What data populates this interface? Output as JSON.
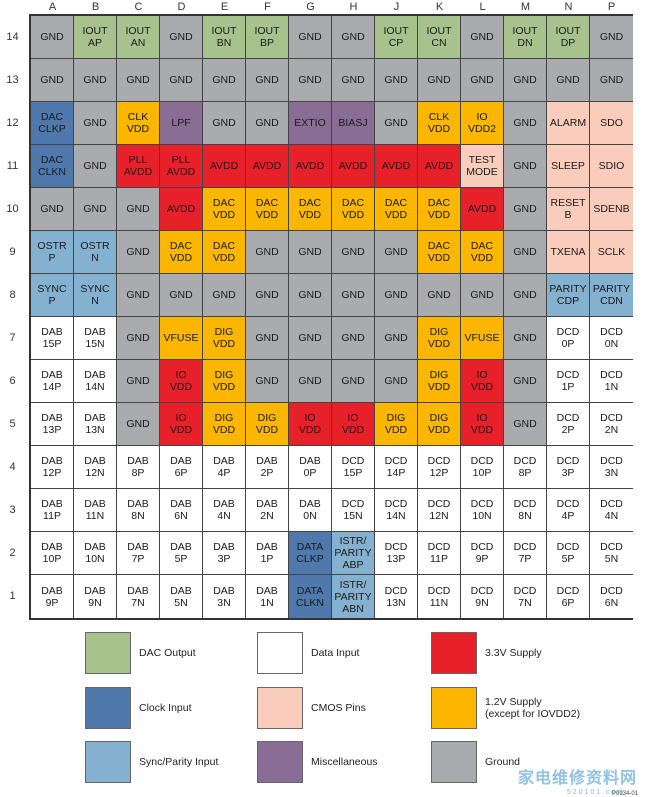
{
  "columns": [
    "A",
    "B",
    "C",
    "D",
    "E",
    "F",
    "G",
    "H",
    "J",
    "K",
    "L",
    "M",
    "N",
    "P"
  ],
  "rows": [
    "14",
    "13",
    "12",
    "11",
    "10",
    "9",
    "8",
    "7",
    "6",
    "5",
    "4",
    "3",
    "2",
    "1"
  ],
  "colors": {
    "dac": "#a8c28d",
    "clk": "#4f79ad",
    "sync": "#84b1cf",
    "data": "#ffffff",
    "cmos": "#f9ccbb",
    "misc": "#8a6d94",
    "v33": "#e8202a",
    "v12": "#fbb700",
    "gnd": "#a9abae"
  },
  "grid": [
    [
      [
        "GND",
        "gnd"
      ],
      [
        "IOUT\nAP",
        "dac"
      ],
      [
        "IOUT\nAN",
        "dac"
      ],
      [
        "GND",
        "gnd"
      ],
      [
        "IOUT\nBN",
        "dac"
      ],
      [
        "IOUT\nBP",
        "dac"
      ],
      [
        "GND",
        "gnd"
      ],
      [
        "GND",
        "gnd"
      ],
      [
        "IOUT\nCP",
        "dac"
      ],
      [
        "IOUT\nCN",
        "dac"
      ],
      [
        "GND",
        "gnd"
      ],
      [
        "IOUT\nDN",
        "dac"
      ],
      [
        "IOUT\nDP",
        "dac"
      ],
      [
        "GND",
        "gnd"
      ]
    ],
    [
      [
        "GND",
        "gnd"
      ],
      [
        "GND",
        "gnd"
      ],
      [
        "GND",
        "gnd"
      ],
      [
        "GND",
        "gnd"
      ],
      [
        "GND",
        "gnd"
      ],
      [
        "GND",
        "gnd"
      ],
      [
        "GND",
        "gnd"
      ],
      [
        "GND",
        "gnd"
      ],
      [
        "GND",
        "gnd"
      ],
      [
        "GND",
        "gnd"
      ],
      [
        "GND",
        "gnd"
      ],
      [
        "GND",
        "gnd"
      ],
      [
        "GND",
        "gnd"
      ],
      [
        "GND",
        "gnd"
      ]
    ],
    [
      [
        "DAC\nCLKP",
        "clk"
      ],
      [
        "GND",
        "gnd"
      ],
      [
        "CLK\nVDD",
        "v12"
      ],
      [
        "LPF",
        "misc"
      ],
      [
        "GND",
        "gnd"
      ],
      [
        "GND",
        "gnd"
      ],
      [
        "EXTIO",
        "misc"
      ],
      [
        "BIASJ",
        "misc"
      ],
      [
        "GND",
        "gnd"
      ],
      [
        "CLK\nVDD",
        "v12"
      ],
      [
        "IO\nVDD2",
        "v12"
      ],
      [
        "GND",
        "gnd"
      ],
      [
        "ALARM",
        "cmos"
      ],
      [
        "SDO",
        "cmos"
      ]
    ],
    [
      [
        "DAC\nCLKN",
        "clk"
      ],
      [
        "GND",
        "gnd"
      ],
      [
        "PLL\nAVDD",
        "v33"
      ],
      [
        "PLL\nAVDD",
        "v33"
      ],
      [
        "AVDD",
        "v33"
      ],
      [
        "AVDD",
        "v33"
      ],
      [
        "AVDD",
        "v33"
      ],
      [
        "AVDD",
        "v33"
      ],
      [
        "AVDD",
        "v33"
      ],
      [
        "AVDD",
        "v33"
      ],
      [
        "TEST\nMODE",
        "cmos"
      ],
      [
        "GND",
        "gnd"
      ],
      [
        "SLEEP",
        "cmos"
      ],
      [
        "SDIO",
        "cmos"
      ]
    ],
    [
      [
        "GND",
        "gnd"
      ],
      [
        "GND",
        "gnd"
      ],
      [
        "GND",
        "gnd"
      ],
      [
        "AVDD",
        "v33"
      ],
      [
        "DAC\nVDD",
        "v12"
      ],
      [
        "DAC\nVDD",
        "v12"
      ],
      [
        "DAC\nVDD",
        "v12"
      ],
      [
        "DAC\nVDD",
        "v12"
      ],
      [
        "DAC\nVDD",
        "v12"
      ],
      [
        "DAC\nVDD",
        "v12"
      ],
      [
        "AVDD",
        "v33"
      ],
      [
        "GND",
        "gnd"
      ],
      [
        "RESET\nB",
        "cmos"
      ],
      [
        "SDENB",
        "cmos"
      ]
    ],
    [
      [
        "OSTR\nP",
        "sync"
      ],
      [
        "OSTR\nN",
        "sync"
      ],
      [
        "GND",
        "gnd"
      ],
      [
        "DAC\nVDD",
        "v12"
      ],
      [
        "DAC\nVDD",
        "v12"
      ],
      [
        "GND",
        "gnd"
      ],
      [
        "GND",
        "gnd"
      ],
      [
        "GND",
        "gnd"
      ],
      [
        "GND",
        "gnd"
      ],
      [
        "DAC\nVDD",
        "v12"
      ],
      [
        "DAC\nVDD",
        "v12"
      ],
      [
        "GND",
        "gnd"
      ],
      [
        "TXENA",
        "cmos"
      ],
      [
        "SCLK",
        "cmos"
      ]
    ],
    [
      [
        "SYNC\nP",
        "sync"
      ],
      [
        "SYNC\nN",
        "sync"
      ],
      [
        "GND",
        "gnd"
      ],
      [
        "GND",
        "gnd"
      ],
      [
        "GND",
        "gnd"
      ],
      [
        "GND",
        "gnd"
      ],
      [
        "GND",
        "gnd"
      ],
      [
        "GND",
        "gnd"
      ],
      [
        "GND",
        "gnd"
      ],
      [
        "GND",
        "gnd"
      ],
      [
        "GND",
        "gnd"
      ],
      [
        "GND",
        "gnd"
      ],
      [
        "PARITY\nCDP",
        "sync"
      ],
      [
        "PARITY\nCDN",
        "sync"
      ]
    ],
    [
      [
        "DAB\n15P",
        "data"
      ],
      [
        "DAB\n15N",
        "data"
      ],
      [
        "GND",
        "gnd"
      ],
      [
        "VFUSE",
        "v12"
      ],
      [
        "DIG\nVDD",
        "v12"
      ],
      [
        "GND",
        "gnd"
      ],
      [
        "GND",
        "gnd"
      ],
      [
        "GND",
        "gnd"
      ],
      [
        "GND",
        "gnd"
      ],
      [
        "DIG\nVDD",
        "v12"
      ],
      [
        "VFUSE",
        "v12"
      ],
      [
        "GND",
        "gnd"
      ],
      [
        "DCD\n0P",
        "data"
      ],
      [
        "DCD\n0N",
        "data"
      ]
    ],
    [
      [
        "DAB\n14P",
        "data"
      ],
      [
        "DAB\n14N",
        "data"
      ],
      [
        "GND",
        "gnd"
      ],
      [
        "IO\nVDD",
        "v33"
      ],
      [
        "DIG\nVDD",
        "v12"
      ],
      [
        "GND",
        "gnd"
      ],
      [
        "GND",
        "gnd"
      ],
      [
        "GND",
        "gnd"
      ],
      [
        "GND",
        "gnd"
      ],
      [
        "DIG\nVDD",
        "v12"
      ],
      [
        "IO\nVDD",
        "v33"
      ],
      [
        "GND",
        "gnd"
      ],
      [
        "DCD\n1P",
        "data"
      ],
      [
        "DCD\n1N",
        "data"
      ]
    ],
    [
      [
        "DAB\n13P",
        "data"
      ],
      [
        "DAB\n13N",
        "data"
      ],
      [
        "GND",
        "gnd"
      ],
      [
        "IO\nVDD",
        "v33"
      ],
      [
        "DIG\nVDD",
        "v12"
      ],
      [
        "DIG\nVDD",
        "v12"
      ],
      [
        "IO\nVDD",
        "v33"
      ],
      [
        "IO\nVDD",
        "v33"
      ],
      [
        "DIG\nVDD",
        "v12"
      ],
      [
        "DIG\nVDD",
        "v12"
      ],
      [
        "IO\nVDD",
        "v33"
      ],
      [
        "GND",
        "gnd"
      ],
      [
        "DCD\n2P",
        "data"
      ],
      [
        "DCD\n2N",
        "data"
      ]
    ],
    [
      [
        "DAB\n12P",
        "data"
      ],
      [
        "DAB\n12N",
        "data"
      ],
      [
        "DAB\n8P",
        "data"
      ],
      [
        "DAB\n6P",
        "data"
      ],
      [
        "DAB\n4P",
        "data"
      ],
      [
        "DAB\n2P",
        "data"
      ],
      [
        "DAB\n0P",
        "data"
      ],
      [
        "DCD\n15P",
        "data"
      ],
      [
        "DCD\n14P",
        "data"
      ],
      [
        "DCD\n12P",
        "data"
      ],
      [
        "DCD\n10P",
        "data"
      ],
      [
        "DCD\n8P",
        "data"
      ],
      [
        "DCD\n3P",
        "data"
      ],
      [
        "DCD\n3N",
        "data"
      ]
    ],
    [
      [
        "DAB\n11P",
        "data"
      ],
      [
        "DAB\n11N",
        "data"
      ],
      [
        "DAB\n8N",
        "data"
      ],
      [
        "DAB\n6N",
        "data"
      ],
      [
        "DAB\n4N",
        "data"
      ],
      [
        "DAB\n2N",
        "data"
      ],
      [
        "DAB\n0N",
        "data"
      ],
      [
        "DCD\n15N",
        "data"
      ],
      [
        "DCD\n14N",
        "data"
      ],
      [
        "DCD\n12N",
        "data"
      ],
      [
        "DCD\n10N",
        "data"
      ],
      [
        "DCD\n8N",
        "data"
      ],
      [
        "DCD\n4P",
        "data"
      ],
      [
        "DCD\n4N",
        "data"
      ]
    ],
    [
      [
        "DAB\n10P",
        "data"
      ],
      [
        "DAB\n10N",
        "data"
      ],
      [
        "DAB\n7P",
        "data"
      ],
      [
        "DAB\n5P",
        "data"
      ],
      [
        "DAB\n3P",
        "data"
      ],
      [
        "DAB\n1P",
        "data"
      ],
      [
        "DATA\nCLKP",
        "clk"
      ],
      [
        "ISTR/\nPARITY\nABP",
        "sync"
      ],
      [
        "DCD\n13P",
        "data"
      ],
      [
        "DCD\n11P",
        "data"
      ],
      [
        "DCD\n9P",
        "data"
      ],
      [
        "DCD\n7P",
        "data"
      ],
      [
        "DCD\n5P",
        "data"
      ],
      [
        "DCD\n5N",
        "data"
      ]
    ],
    [
      [
        "DAB\n9P",
        "data"
      ],
      [
        "DAB\n9N",
        "data"
      ],
      [
        "DAB\n7N",
        "data"
      ],
      [
        "DAB\n5N",
        "data"
      ],
      [
        "DAB\n3N",
        "data"
      ],
      [
        "DAB\n1N",
        "data"
      ],
      [
        "DATA\nCLKN",
        "clk"
      ],
      [
        "ISTR/\nPARITY\nABN",
        "sync"
      ],
      [
        "DCD\n13N",
        "data"
      ],
      [
        "DCD\n11N",
        "data"
      ],
      [
        "DCD\n9N",
        "data"
      ],
      [
        "DCD\n7N",
        "data"
      ],
      [
        "DCD\n6P",
        "data"
      ],
      [
        "DCD\n6N",
        "data"
      ]
    ]
  ],
  "legend": [
    {
      "label": "DAC Output",
      "key": "dac"
    },
    {
      "label": "Data Input",
      "key": "data"
    },
    {
      "label": "3.3V Supply",
      "key": "v33"
    },
    {
      "label": "Clock Input",
      "key": "clk"
    },
    {
      "label": "CMOS Pins",
      "key": "cmos"
    },
    {
      "label": "1.2V Supply\n(except for IOVDD2)",
      "key": "v12"
    },
    {
      "label": "Sync/Parity Input",
      "key": "sync"
    },
    {
      "label": "Miscellaneous",
      "key": "misc"
    },
    {
      "label": "Ground",
      "key": "gnd"
    }
  ],
  "figure_id": "P0134-01",
  "watermark": {
    "text": "家电维修资料网",
    "sub": "5 2 0 1 0 1 . c o m"
  }
}
